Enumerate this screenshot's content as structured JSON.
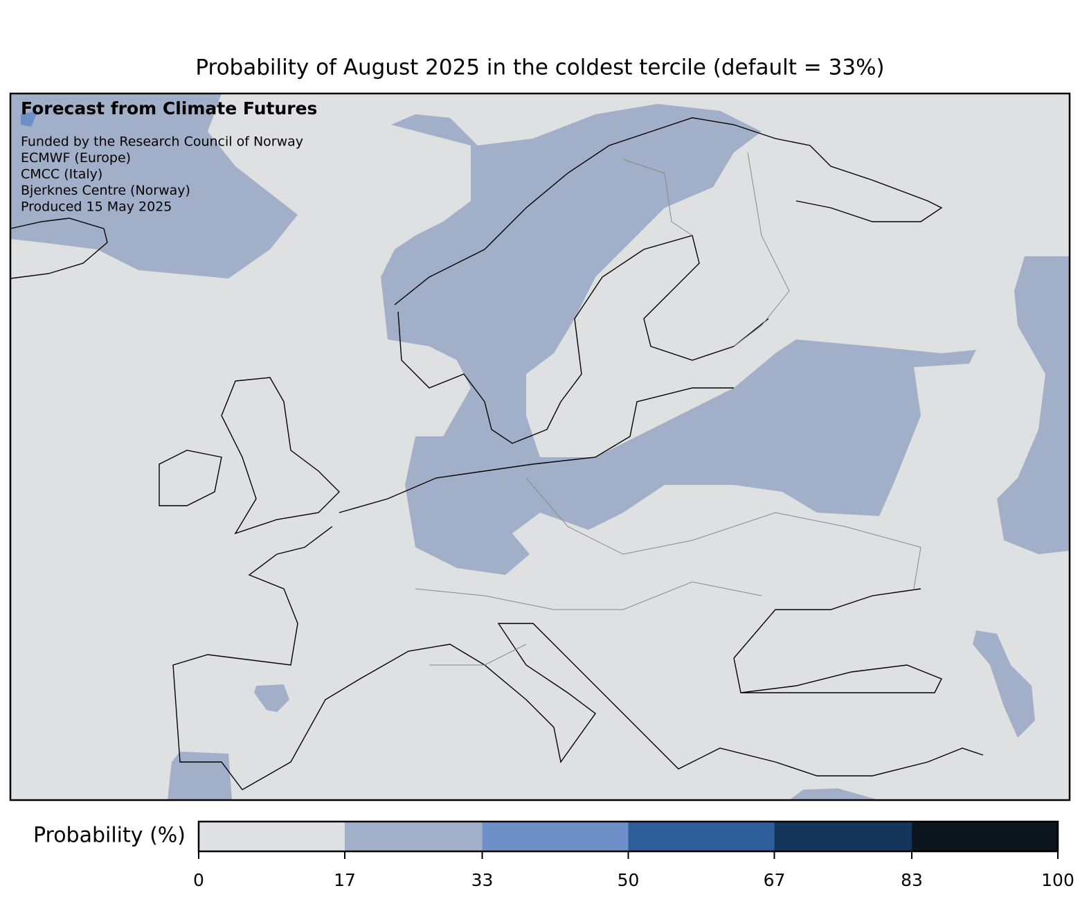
{
  "title": "Probability of August 2025 in the coldest tercile (default = 33%)",
  "annotation": {
    "heading": "Forecast from Climate Futures",
    "lines": [
      "Funded by the Research Council of Norway",
      "ECMWF (Europe)",
      "CMCC (Italy)",
      "Bjerknes Centre (Norway)",
      "Produced 15 May 2025"
    ]
  },
  "colorbar": {
    "label": "Probability (%)",
    "lim": [
      0,
      100
    ],
    "ticks": [
      0,
      17,
      33,
      50,
      67,
      83,
      100
    ],
    "colors": [
      "#dfe0e2",
      "#a2afc8",
      "#6f8fc8",
      "#2e5e9a",
      "#15365a",
      "#0c141d"
    ]
  }
}
